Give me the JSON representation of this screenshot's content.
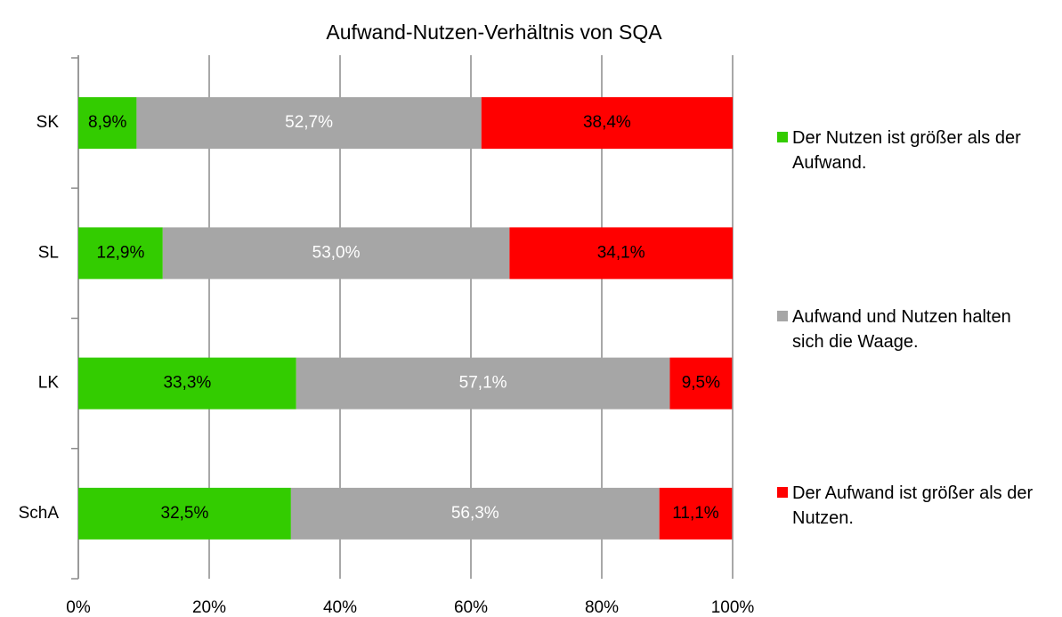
{
  "chart_data": {
    "type": "stacked_barh",
    "title": "Aufwand-Nutzen-Verhältnis von SQA",
    "categories": [
      "SK",
      "SL",
      "LK",
      "SchA"
    ],
    "series": [
      {
        "name": "Der Nutzen ist größer als der Aufwand.",
        "color": "#33cc00",
        "label_color": "#000000",
        "values": [
          8.9,
          12.9,
          33.3,
          32.5
        ],
        "value_labels": [
          "8,9%",
          "12,9%",
          "33,3%",
          "32,5%"
        ]
      },
      {
        "name": "Aufwand und Nutzen halten sich die Waage.",
        "color": "#a6a6a6",
        "label_color": "#ffffff",
        "values": [
          52.7,
          53.0,
          57.1,
          56.3
        ],
        "value_labels": [
          "52,7%",
          "53,0%",
          "57,1%",
          "56,3%"
        ]
      },
      {
        "name": "Der Aufwand ist größer als der Nutzen.",
        "color": "#ff0000",
        "label_color": "#000000",
        "values": [
          38.4,
          34.1,
          9.5,
          11.1
        ],
        "value_labels": [
          "38,4%",
          "34,1%",
          "9,5%",
          "11,1%"
        ]
      }
    ],
    "xlim": [
      0,
      100
    ],
    "xticks": [
      {
        "value": 0,
        "label": "0%"
      },
      {
        "value": 20,
        "label": "20%"
      },
      {
        "value": 40,
        "label": "40%"
      },
      {
        "value": 60,
        "label": "60%"
      },
      {
        "value": 80,
        "label": "80%"
      },
      {
        "value": 100,
        "label": "100%"
      }
    ],
    "grid": true,
    "legend": "right"
  }
}
